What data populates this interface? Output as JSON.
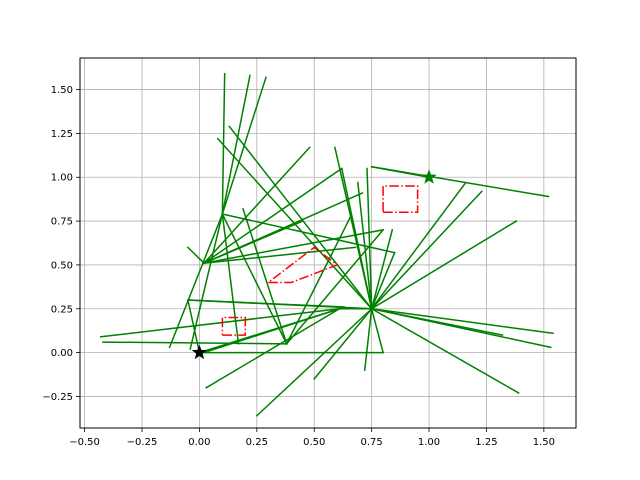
{
  "chart_data": {
    "type": "line",
    "title": "",
    "xlabel": "",
    "ylabel": "",
    "xlim": [
      -0.52,
      1.64
    ],
    "ylim": [
      -0.43,
      1.68
    ],
    "xticks": [
      -0.5,
      -0.25,
      0.0,
      0.25,
      0.5,
      0.75,
      1.0,
      1.25,
      1.5
    ],
    "xtick_labels": [
      "−0.50",
      "−0.25",
      "0.00",
      "0.25",
      "0.50",
      "0.75",
      "1.00",
      "1.25",
      "1.50"
    ],
    "yticks": [
      -0.25,
      0.0,
      0.25,
      0.5,
      0.75,
      1.0,
      1.25,
      1.5
    ],
    "ytick_labels": [
      "−0.25",
      "0.00",
      "0.25",
      "0.50",
      "0.75",
      "1.00",
      "1.25",
      "1.50"
    ],
    "grid": true,
    "colors": {
      "segments": "#008000",
      "obstacles": "#ff0000",
      "start": "#000000",
      "goal": "#008000",
      "grid": "#b0b0b0"
    },
    "green_segments": [
      [
        [
          0.0,
          0.0
        ],
        [
          0.61,
          0.25
        ]
      ],
      [
        [
          0.61,
          0.25
        ],
        [
          0.75,
          0.25
        ]
      ],
      [
        [
          0.75,
          0.25
        ],
        [
          1.54,
          0.11
        ]
      ],
      [
        [
          0.75,
          0.25
        ],
        [
          1.53,
          0.03
        ]
      ],
      [
        [
          0.75,
          0.25
        ],
        [
          1.39,
          -0.23
        ]
      ],
      [
        [
          0.75,
          0.25
        ],
        [
          1.32,
          0.1
        ]
      ],
      [
        [
          0.75,
          0.25
        ],
        [
          1.38,
          0.75
        ]
      ],
      [
        [
          0.75,
          0.25
        ],
        [
          1.23,
          0.92
        ]
      ],
      [
        [
          0.75,
          0.25
        ],
        [
          1.16,
          0.97
        ]
      ],
      [
        [
          0.75,
          0.25
        ],
        [
          0.84,
          0.7
        ]
      ],
      [
        [
          0.75,
          0.25
        ],
        [
          0.73,
          1.05
        ]
      ],
      [
        [
          0.75,
          0.25
        ],
        [
          0.72,
          -0.1
        ]
      ],
      [
        [
          0.75,
          0.25
        ],
        [
          0.5,
          -0.15
        ]
      ],
      [
        [
          0.75,
          0.25
        ],
        [
          0.25,
          -0.36
        ]
      ],
      [
        [
          0.75,
          0.25
        ],
        [
          -0.05,
          0.3
        ]
      ],
      [
        [
          0.75,
          0.25
        ],
        [
          0.59,
          1.17
        ]
      ],
      [
        [
          0.75,
          0.25
        ],
        [
          0.62,
          1.05
        ]
      ],
      [
        [
          0.75,
          0.25
        ],
        [
          0.69,
          0.97
        ]
      ],
      [
        [
          0.75,
          0.25
        ],
        [
          0.8,
          0.0
        ]
      ],
      [
        [
          0.8,
          0.0
        ],
        [
          0.0,
          0.0
        ]
      ],
      [
        [
          0.75,
          1.06
        ],
        [
          1.52,
          0.89
        ]
      ],
      [
        [
          0.75,
          1.06
        ],
        [
          1.0,
          1.0
        ]
      ],
      [
        [
          0.75,
          0.25
        ],
        [
          0.13,
          1.29
        ]
      ],
      [
        [
          0.75,
          0.25
        ],
        [
          0.08,
          1.22
        ]
      ],
      [
        [
          0.75,
          0.25
        ],
        [
          0.85,
          0.57
        ]
      ],
      [
        [
          0.85,
          0.57
        ],
        [
          0.1,
          0.79
        ]
      ],
      [
        [
          0.1,
          0.79
        ],
        [
          0.17,
          0.05
        ]
      ],
      [
        [
          0.1,
          0.79
        ],
        [
          0.11,
          1.59
        ]
      ],
      [
        [
          0.1,
          0.79
        ],
        [
          0.22,
          1.58
        ]
      ],
      [
        [
          0.1,
          0.79
        ],
        [
          0.29,
          1.57
        ]
      ],
      [
        [
          0.1,
          0.79
        ],
        [
          -0.04,
          0.02
        ]
      ],
      [
        [
          0.1,
          0.79
        ],
        [
          -0.13,
          0.03
        ]
      ],
      [
        [
          0.1,
          0.79
        ],
        [
          0.38,
          0.05
        ]
      ],
      [
        [
          0.02,
          0.51
        ],
        [
          -0.05,
          0.6
        ]
      ],
      [
        [
          0.02,
          0.51
        ],
        [
          0.68,
          0.6
        ]
      ],
      [
        [
          0.02,
          0.51
        ],
        [
          0.71,
          0.91
        ]
      ],
      [
        [
          0.02,
          0.51
        ],
        [
          0.62,
          1.05
        ]
      ],
      [
        [
          0.02,
          0.51
        ],
        [
          0.48,
          1.17
        ]
      ],
      [
        [
          0.02,
          0.51
        ],
        [
          0.45,
          0.75
        ]
      ],
      [
        [
          0.02,
          0.51
        ],
        [
          0.8,
          0.7
        ]
      ],
      [
        [
          0.8,
          0.7
        ],
        [
          0.38,
          0.05
        ]
      ],
      [
        [
          0.38,
          0.05
        ],
        [
          0.19,
          0.82
        ]
      ],
      [
        [
          0.38,
          0.05
        ],
        [
          0.66,
          0.78
        ]
      ],
      [
        [
          0.38,
          0.05
        ],
        [
          -0.42,
          0.06
        ]
      ],
      [
        [
          -0.05,
          0.3
        ],
        [
          0.0,
          0.0
        ]
      ],
      [
        [
          -0.05,
          0.3
        ],
        [
          0.63,
          0.26
        ]
      ],
      [
        [
          0.61,
          0.25
        ],
        [
          -0.43,
          0.09
        ]
      ],
      [
        [
          0.61,
          0.25
        ],
        [
          0.03,
          -0.2
        ]
      ],
      [
        [
          0.61,
          0.25
        ],
        [
          0.02,
          0.0
        ]
      ]
    ],
    "obstacles": [
      [
        [
          0.1,
          0.1
        ],
        [
          0.2,
          0.1
        ],
        [
          0.2,
          0.2
        ],
        [
          0.1,
          0.2
        ],
        [
          0.1,
          0.1
        ]
      ],
      [
        [
          0.8,
          0.8
        ],
        [
          0.95,
          0.8
        ],
        [
          0.95,
          0.95
        ],
        [
          0.8,
          0.95
        ],
        [
          0.8,
          0.8
        ]
      ],
      [
        [
          0.3,
          0.4
        ],
        [
          0.4,
          0.4
        ],
        [
          0.6,
          0.5
        ],
        [
          0.5,
          0.6
        ],
        [
          0.3,
          0.4
        ]
      ]
    ],
    "start": [
      0.0,
      0.0
    ],
    "goal": [
      1.0,
      1.0
    ]
  }
}
